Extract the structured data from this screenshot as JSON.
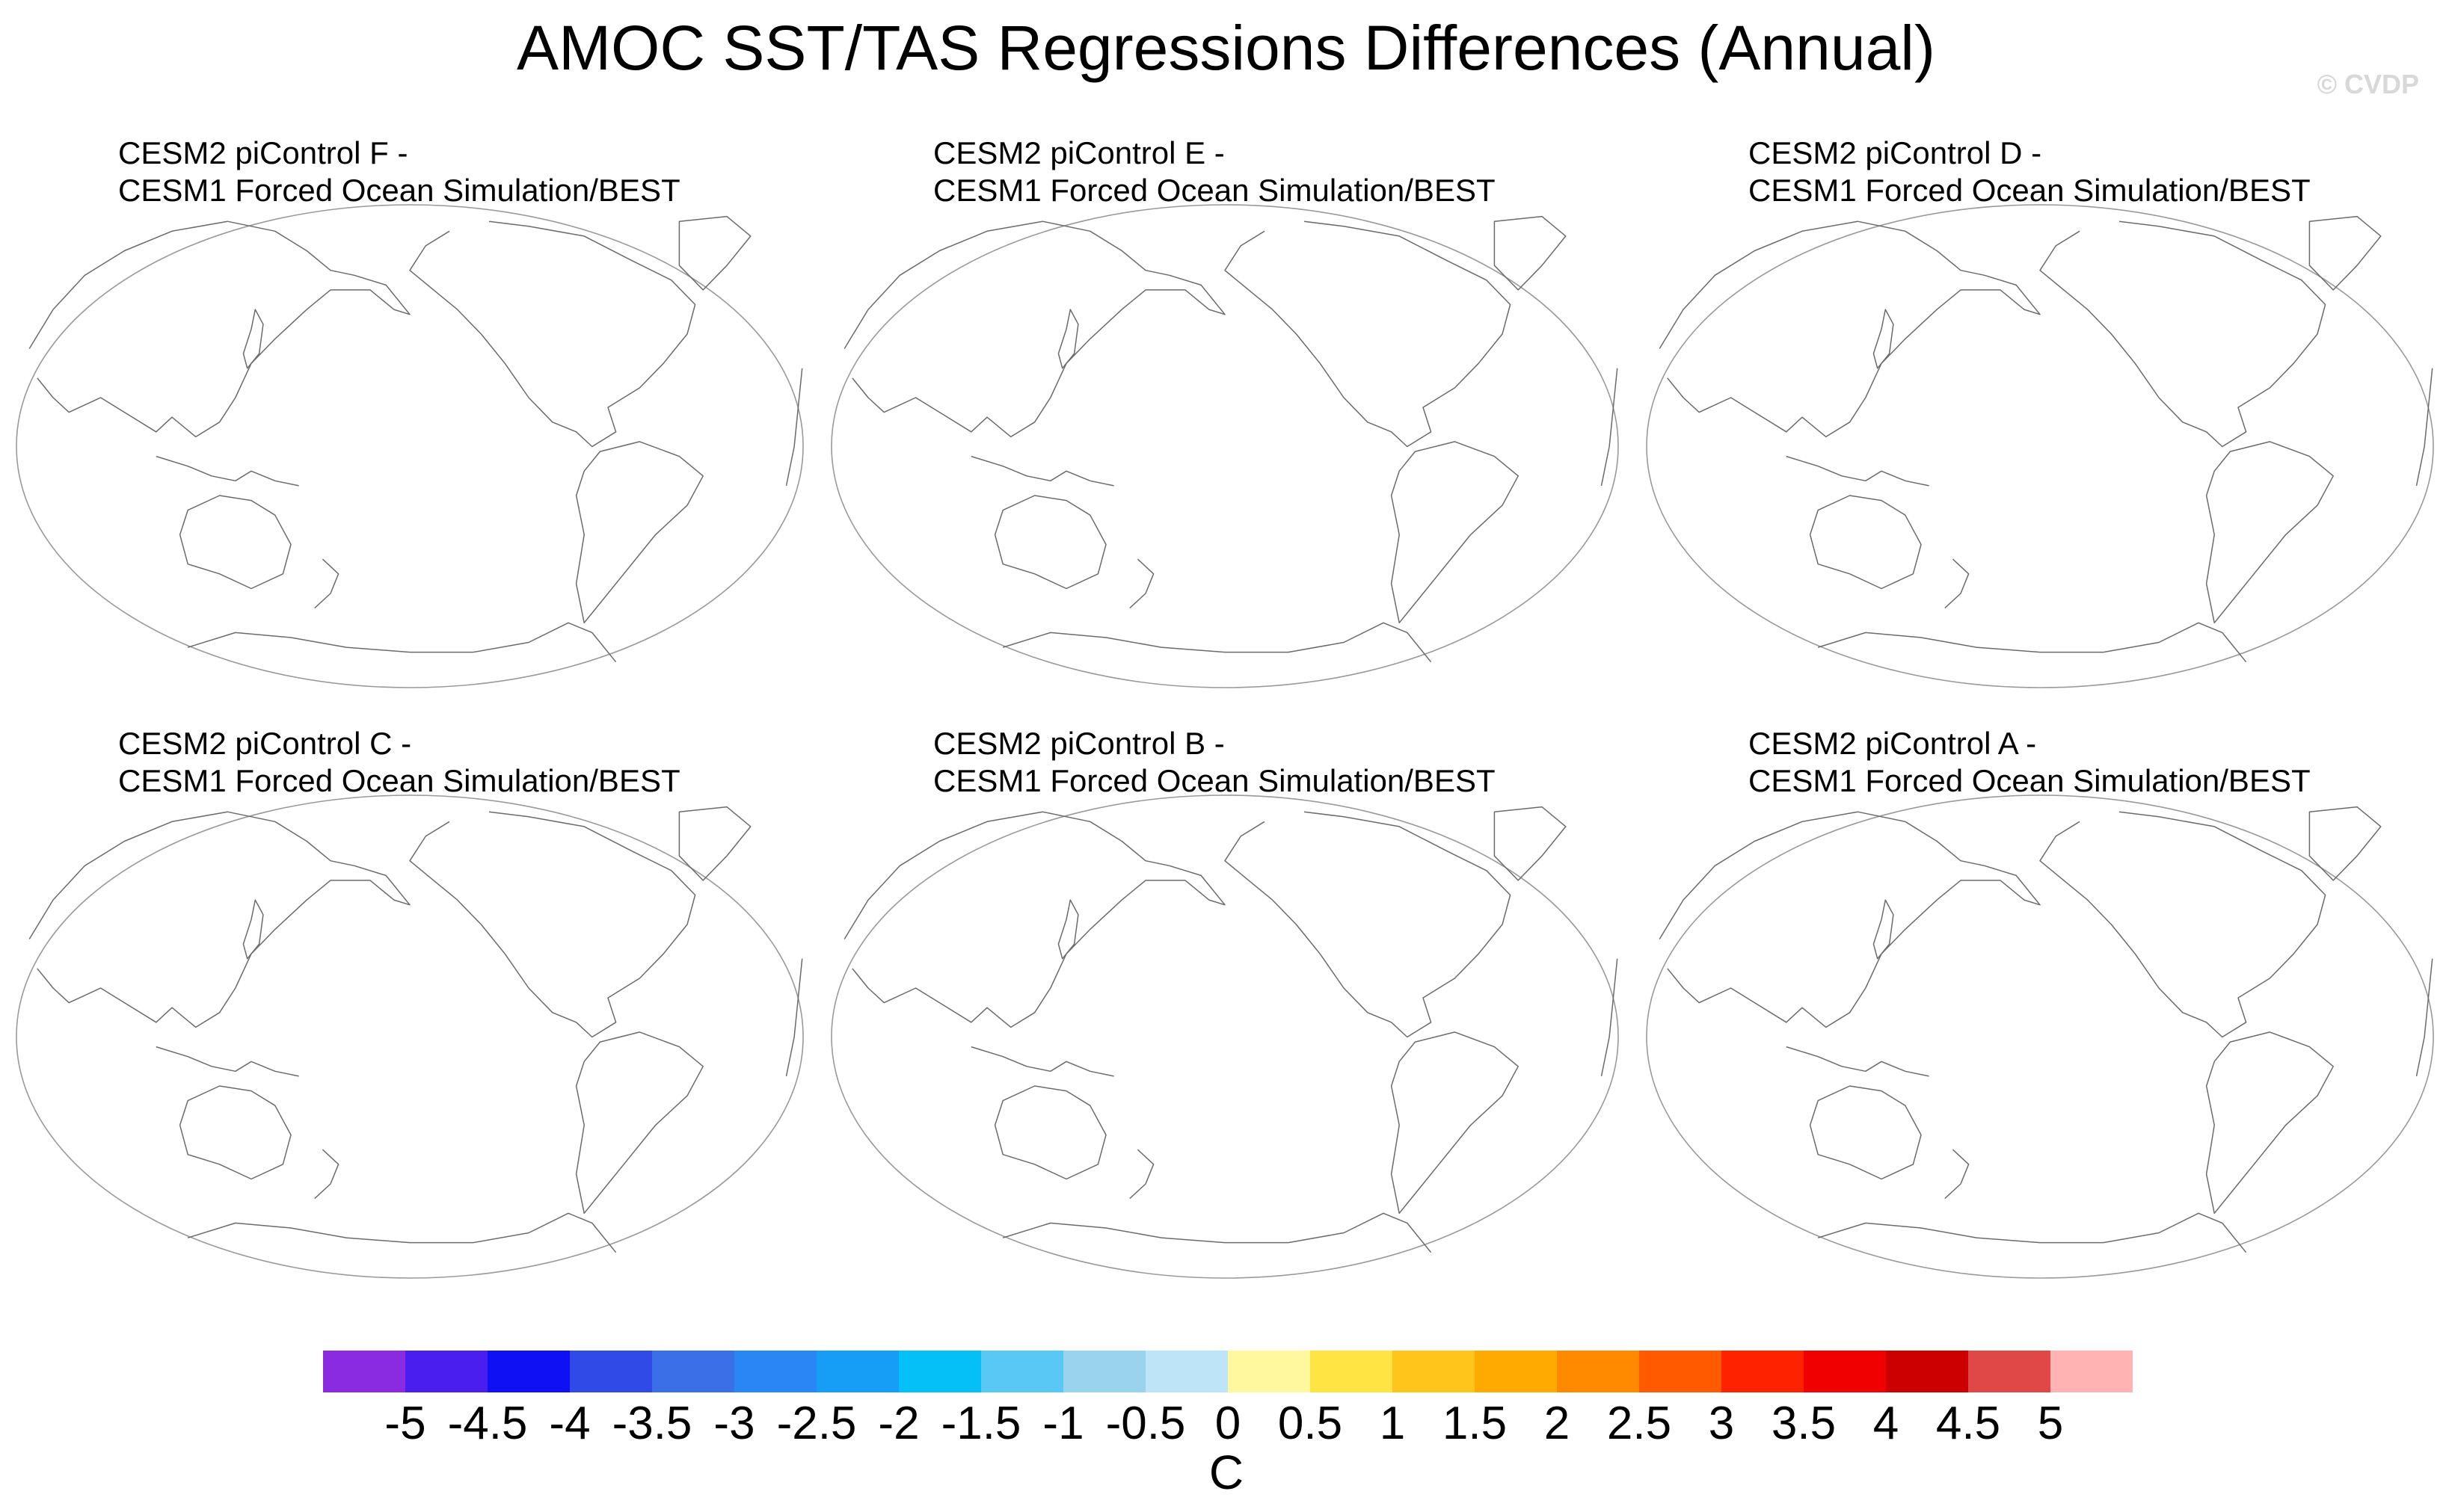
{
  "title": "AMOC SST/TAS Regressions Differences (Annual)",
  "watermark": "© CVDP",
  "panels": [
    {
      "line1": "CESM2 piControl F -",
      "line2": "CESM1 Forced Ocean Simulation/BEST"
    },
    {
      "line1": "CESM2 piControl E -",
      "line2": "CESM1 Forced Ocean Simulation/BEST"
    },
    {
      "line1": "CESM2 piControl D -",
      "line2": "CESM1 Forced Ocean Simulation/BEST"
    },
    {
      "line1": "CESM2 piControl C -",
      "line2": "CESM1 Forced Ocean Simulation/BEST"
    },
    {
      "line1": "CESM2 piControl B -",
      "line2": "CESM1 Forced Ocean Simulation/BEST"
    },
    {
      "line1": "CESM2 piControl A -",
      "line2": "CESM1 Forced Ocean Simulation/BEST"
    }
  ],
  "colorbar": {
    "units": "C",
    "labels": [
      "-5",
      "-4.5",
      "-4",
      "-3.5",
      "-3",
      "-2.5",
      "-2",
      "-1.5",
      "-1",
      "-0.5",
      "0",
      "0.5",
      "1",
      "1.5",
      "2",
      "2.5",
      "3",
      "3.5",
      "4",
      "4.5",
      "5"
    ],
    "colors": [
      "#8a2be2",
      "#4b1ef0",
      "#1010f5",
      "#2f4ae6",
      "#3a6fe8",
      "#2a85f5",
      "#169ef7",
      "#05c0f7",
      "#5ac8f5",
      "#9ad3ee",
      "#bde4f7",
      "#fff89e",
      "#ffe443",
      "#ffc51a",
      "#ffaa00",
      "#ff8a00",
      "#ff5a00",
      "#ff2200",
      "#f00000",
      "#cc0000",
      "#e04848",
      "#ffb3b3"
    ]
  }
}
